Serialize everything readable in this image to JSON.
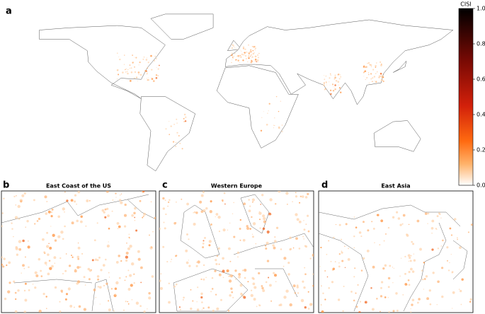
{
  "panels": [
    {
      "label": "a"
    },
    {
      "label": "b",
      "title": "East Coast of the US"
    },
    {
      "label": "c",
      "title": "Western Europe"
    },
    {
      "label": "d",
      "title": "East Asia"
    }
  ],
  "colorbar": {
    "label": "CISI",
    "lim": [
      0,
      1
    ],
    "ticks": [
      {
        "value": 0,
        "label": "0.0"
      },
      0.2,
      0.4,
      0.6,
      0.8,
      {
        "value": 1,
        "label": "1.0"
      }
    ]
  }
}
